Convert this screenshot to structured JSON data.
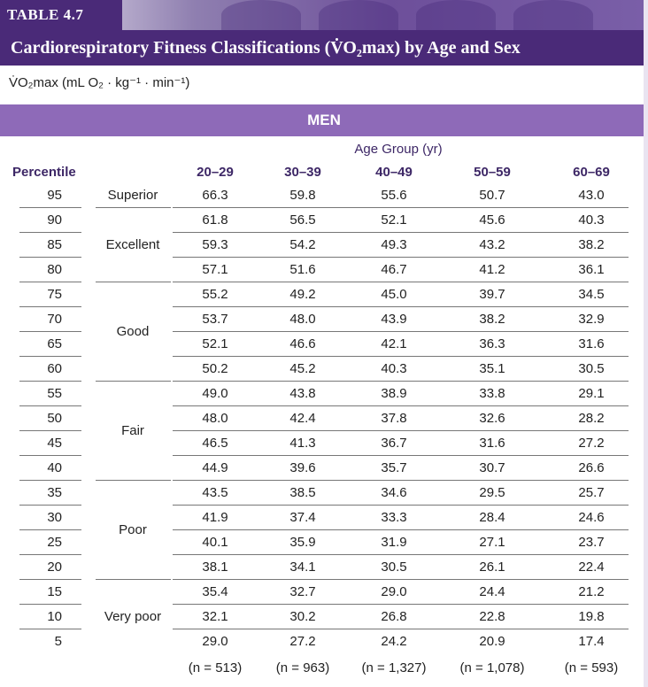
{
  "table_tag": "TABLE 4.7",
  "title": "Cardiorespiratory Fitness Classifications (V̇O₂max) by Age and Sex",
  "unit_line": "V̇O₂max (mL O₂ · kg⁻¹ · min⁻¹)",
  "section": "MEN",
  "age_group_label": "Age Group (yr)",
  "percentile_label": "Percentile",
  "columns": [
    "20–29",
    "30–39",
    "40–49",
    "50–59",
    "60–69"
  ],
  "rows": [
    {
      "pct": "95",
      "values": [
        "66.3",
        "59.8",
        "55.6",
        "50.7",
        "43.0"
      ]
    },
    {
      "pct": "90",
      "values": [
        "61.8",
        "56.5",
        "52.1",
        "45.6",
        "40.3"
      ]
    },
    {
      "pct": "85",
      "values": [
        "59.3",
        "54.2",
        "49.3",
        "43.2",
        "38.2"
      ]
    },
    {
      "pct": "80",
      "values": [
        "57.1",
        "51.6",
        "46.7",
        "41.2",
        "36.1"
      ]
    },
    {
      "pct": "75",
      "values": [
        "55.2",
        "49.2",
        "45.0",
        "39.7",
        "34.5"
      ]
    },
    {
      "pct": "70",
      "values": [
        "53.7",
        "48.0",
        "43.9",
        "38.2",
        "32.9"
      ]
    },
    {
      "pct": "65",
      "values": [
        "52.1",
        "46.6",
        "42.1",
        "36.3",
        "31.6"
      ]
    },
    {
      "pct": "60",
      "values": [
        "50.2",
        "45.2",
        "40.3",
        "35.1",
        "30.5"
      ]
    },
    {
      "pct": "55",
      "values": [
        "49.0",
        "43.8",
        "38.9",
        "33.8",
        "29.1"
      ]
    },
    {
      "pct": "50",
      "values": [
        "48.0",
        "42.4",
        "37.8",
        "32.6",
        "28.2"
      ]
    },
    {
      "pct": "45",
      "values": [
        "46.5",
        "41.3",
        "36.7",
        "31.6",
        "27.2"
      ]
    },
    {
      "pct": "40",
      "values": [
        "44.9",
        "39.6",
        "35.7",
        "30.7",
        "26.6"
      ]
    },
    {
      "pct": "35",
      "values": [
        "43.5",
        "38.5",
        "34.6",
        "29.5",
        "25.7"
      ]
    },
    {
      "pct": "30",
      "values": [
        "41.9",
        "37.4",
        "33.3",
        "28.4",
        "24.6"
      ]
    },
    {
      "pct": "25",
      "values": [
        "40.1",
        "35.9",
        "31.9",
        "27.1",
        "23.7"
      ]
    },
    {
      "pct": "20",
      "values": [
        "38.1",
        "34.1",
        "30.5",
        "26.1",
        "22.4"
      ]
    },
    {
      "pct": "15",
      "values": [
        "35.4",
        "32.7",
        "29.0",
        "24.4",
        "21.2"
      ]
    },
    {
      "pct": "10",
      "values": [
        "32.1",
        "30.2",
        "26.8",
        "22.8",
        "19.8"
      ]
    },
    {
      "pct": "5",
      "values": [
        "29.0",
        "27.2",
        "24.2",
        "20.9",
        "17.4"
      ]
    }
  ],
  "classifications": [
    "Superior",
    "Excellent",
    "Good",
    "Fair",
    "Poor",
    "Very poor"
  ],
  "sample_sizes": [
    "(n = 513)",
    "(n = 963)",
    "(n = 1,327)",
    "(n = 1,078)",
    "(n = 593)"
  ]
}
